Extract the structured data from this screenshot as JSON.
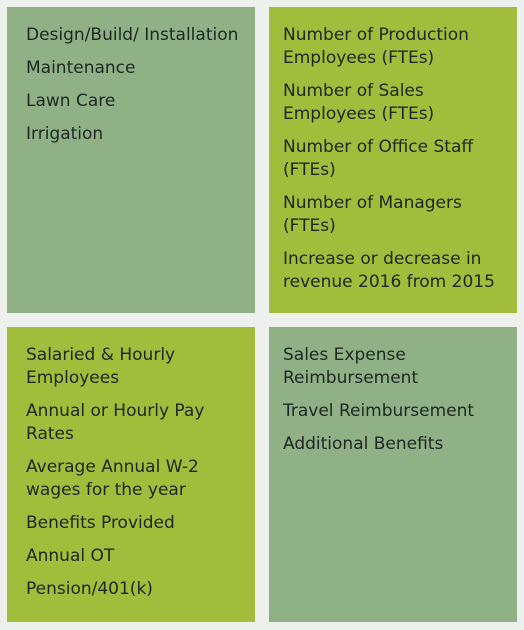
{
  "colors": {
    "green_gray": "#8fb185",
    "lime": "#a1bd3b",
    "text": "#1f2623"
  },
  "boxes": {
    "top_left": [
      "Design/Build/ Installation",
      "Maintenance",
      "Lawn Care",
      "Irrigation"
    ],
    "top_right": [
      "Number of Production Employees (FTEs)",
      "Number of Sales Employees (FTEs)",
      "Number of Office Staff (FTEs)",
      "Number of Managers (FTEs)",
      "Increase or decrease in revenue 2016 from 2015"
    ],
    "bottom_left": [
      "Salaried & Hourly Employees",
      "Annual or Hourly Pay Rates",
      "Average Annual W-2 wages for the year",
      "Benefits Provided",
      "Annual OT",
      "Pension/401(k)"
    ],
    "bottom_right": [
      "Sales Expense Reimbursement",
      "Travel Reimbursement",
      "Additional Benefits"
    ]
  }
}
